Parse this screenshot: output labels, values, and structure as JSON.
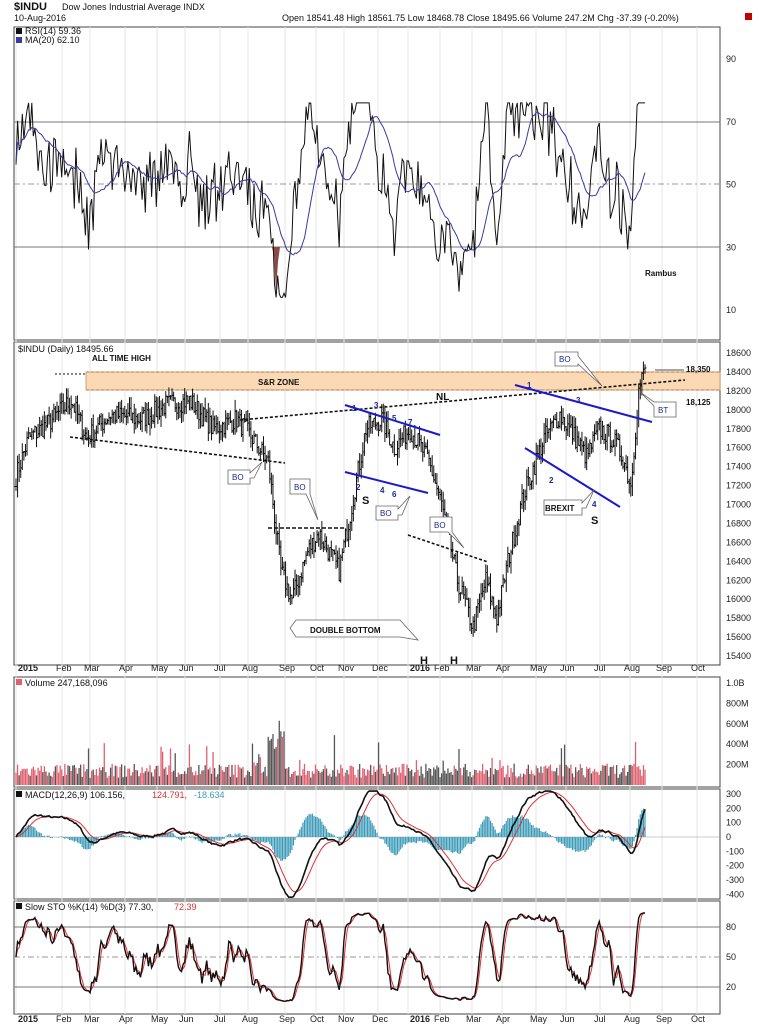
{
  "header": {
    "symbol": "$INDU",
    "name": "Dow Jones Industrial Average INDX",
    "date": "10-Aug-2016",
    "quote": "Open 18541.48  High 18561.75  Low 18468.78  Close 18495.66  Volume 247.2M  Chg -37.39 (-0.20%)"
  },
  "panels": {
    "rsi": {
      "legend1": "RSI(14) 59.36",
      "legend2": "MA(20) 62.10",
      "ticks": [
        "90",
        "70",
        "50",
        "30",
        "10"
      ],
      "watermark": "Rambus"
    },
    "price": {
      "legend": "$INDU (Daily) 18495.66",
      "ticks": [
        "18600",
        "18400",
        "18200",
        "18000",
        "17800",
        "17600",
        "17400",
        "17200",
        "17000",
        "16800",
        "16600",
        "16400",
        "16200",
        "16000",
        "15800",
        "15600",
        "15400"
      ]
    },
    "volume": {
      "legend": "Volume 247,168,096",
      "ticks": [
        "1.0B",
        "800M",
        "600M",
        "400M",
        "200M"
      ]
    },
    "macd": {
      "legend_main": "MACD(12,26,9) 106.156,",
      "legend_signal": "124.791,",
      "legend_hist": "-18.634",
      "ticks": [
        "300",
        "200",
        "100",
        "0",
        "-100",
        "-200",
        "-300",
        "-400"
      ]
    },
    "sto": {
      "legend_main": "Slow STO %K(14) %D(3) 77.30,",
      "legend_signal": "72.39",
      "ticks": [
        "80",
        "50",
        "20"
      ]
    }
  },
  "month_labels": [
    "2015",
    "Feb",
    "Mar",
    "Apr",
    "May",
    "Jun",
    "Jul",
    "Aug",
    "Sep",
    "Oct",
    "Nov",
    "Dec",
    "2016",
    "Feb",
    "Mar",
    "Apr",
    "May",
    "Jun",
    "Jul",
    "Aug",
    "Sep",
    "Oct"
  ],
  "annotations": {
    "all_time_high": "ALL TIME HIGH",
    "sr_zone": "S&R ZONE",
    "nl": "NL",
    "level_high": "18,350",
    "level_low": "18,125",
    "double_bottom": "DOUBLE BOTTOM",
    "brexit": "BREXIT",
    "bo": "BO",
    "bt": "BT",
    "s": "S",
    "h": "H",
    "n1": "1",
    "n2": "2",
    "n3": "3",
    "n4": "4",
    "n5": "5",
    "n6": "6",
    "n7": "7"
  },
  "colors": {
    "sr_zone_fill": "#fbd9b5",
    "pattern_line": "#1a1acc",
    "ma_line": "#3a3aa0",
    "volume_up": "#e06070",
    "volume_down": "#555555",
    "macd_hist": "#3a9ab8",
    "signal_line": "#e03030",
    "rsi_low_fill": "#8b4a4a"
  },
  "chart_data": [
    {
      "type": "line",
      "title": "RSI(14)",
      "series": [
        {
          "name": "RSI(14)",
          "last": 59.36
        },
        {
          "name": "MA(20)",
          "last": 62.1
        }
      ],
      "ylim": [
        0,
        100
      ],
      "reference_lines": [
        70,
        50,
        30
      ]
    },
    {
      "type": "candlestick",
      "title": "$INDU (Daily)",
      "x": [
        "2015-01",
        "2015-02",
        "2015-03",
        "2015-04",
        "2015-05",
        "2015-06",
        "2015-07",
        "2015-08",
        "2015-09",
        "2015-10",
        "2015-11",
        "2015-12",
        "2016-01",
        "2016-02",
        "2016-03",
        "2016-04",
        "2016-05",
        "2016-06",
        "2016-07",
        "2016-08"
      ],
      "values": [
        17300,
        17900,
        17900,
        18000,
        18050,
        17800,
        17800,
        17300,
        16300,
        16800,
        17800,
        17500,
        16300,
        16400,
        17500,
        17900,
        17600,
        17700,
        18300,
        18500
      ],
      "last_close": 18495.66,
      "ylim": [
        15300,
        18700
      ],
      "levels": [
        18350,
        18125
      ]
    },
    {
      "type": "bar",
      "title": "Volume",
      "last": 247168096,
      "ylim": [
        0,
        1000000000
      ]
    },
    {
      "type": "line",
      "title": "MACD(12,26,9)",
      "series": [
        {
          "name": "MACD",
          "last": 106.156
        },
        {
          "name": "Signal",
          "last": 124.791
        },
        {
          "name": "Histogram",
          "last": -18.634
        }
      ],
      "ylim": [
        -420,
        320
      ]
    },
    {
      "type": "line",
      "title": "Slow STO %K(14) %D(3)",
      "series": [
        {
          "name": "%K",
          "last": 77.3
        },
        {
          "name": "%D",
          "last": 72.39
        }
      ],
      "ylim": [
        0,
        100
      ],
      "reference_lines": [
        80,
        50,
        20
      ]
    }
  ]
}
